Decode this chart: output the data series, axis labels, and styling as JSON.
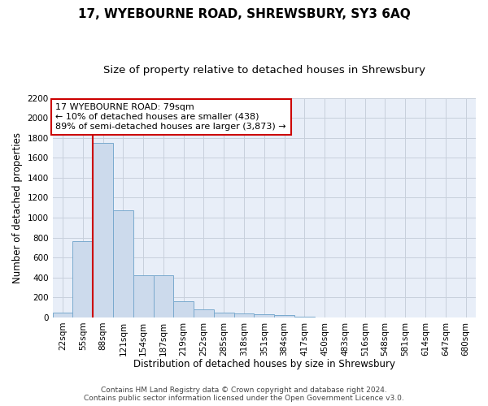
{
  "title": "17, WYEBOURNE ROAD, SHREWSBURY, SY3 6AQ",
  "subtitle": "Size of property relative to detached houses in Shrewsbury",
  "xlabel": "Distribution of detached houses by size in Shrewsbury",
  "ylabel": "Number of detached properties",
  "footer_line1": "Contains HM Land Registry data © Crown copyright and database right 2024.",
  "footer_line2": "Contains public sector information licensed under the Open Government Licence v3.0.",
  "bin_labels": [
    "22sqm",
    "55sqm",
    "88sqm",
    "121sqm",
    "154sqm",
    "187sqm",
    "219sqm",
    "252sqm",
    "285sqm",
    "318sqm",
    "351sqm",
    "384sqm",
    "417sqm",
    "450sqm",
    "483sqm",
    "516sqm",
    "548sqm",
    "581sqm",
    "614sqm",
    "647sqm",
    "680sqm"
  ],
  "bar_values": [
    50,
    760,
    1750,
    1070,
    420,
    420,
    160,
    80,
    50,
    40,
    30,
    25,
    10,
    0,
    0,
    0,
    0,
    0,
    0,
    0,
    0
  ],
  "bar_color": "#ccdaec",
  "bar_edge_color": "#7aaace",
  "grid_color": "#c8d0dc",
  "annotation_text": "17 WYEBOURNE ROAD: 79sqm\n← 10% of detached houses are smaller (438)\n89% of semi-detached houses are larger (3,873) →",
  "vline_color": "#cc0000",
  "annotation_box_color": "white",
  "annotation_box_edge_color": "#cc0000",
  "ylim": [
    0,
    2200
  ],
  "yticks": [
    0,
    200,
    400,
    600,
    800,
    1000,
    1200,
    1400,
    1600,
    1800,
    2000,
    2200
  ],
  "background_color": "#ffffff",
  "plot_bg_color": "#e8eef8",
  "title_fontsize": 11,
  "subtitle_fontsize": 9.5,
  "axis_label_fontsize": 8.5,
  "tick_fontsize": 7.5,
  "footer_fontsize": 6.5,
  "annotation_fontsize": 8
}
